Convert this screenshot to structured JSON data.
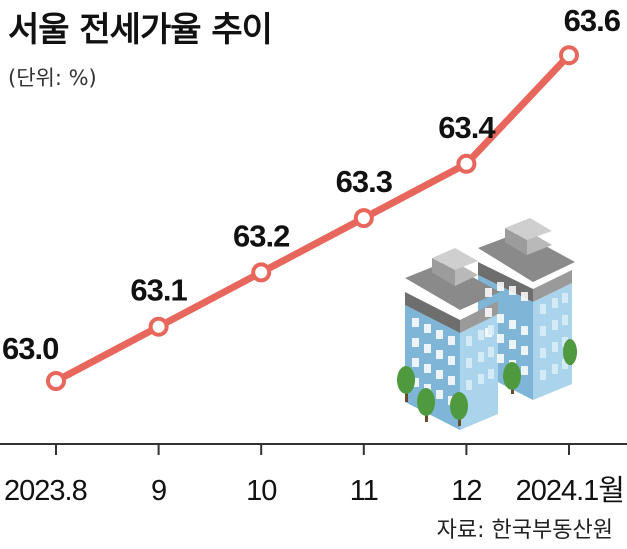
{
  "title": "서울 전세가율 추이",
  "subtitle": "(단위: %)",
  "source": "자료: 한국부동산원",
  "colors": {
    "line": "#e8675c",
    "axis": "#333333"
  },
  "chart_data": {
    "type": "line",
    "title": "서울 전세가율 추이",
    "unit": "%",
    "categories": [
      "2023.8",
      "9",
      "10",
      "11",
      "12",
      "2024.1월"
    ],
    "values": [
      63.0,
      63.1,
      63.2,
      63.3,
      63.4,
      63.6
    ],
    "value_labels": [
      "63.0",
      "63.1",
      "63.2",
      "63.3",
      "63.4",
      "63.6"
    ],
    "grid": false,
    "legend": "none"
  }
}
